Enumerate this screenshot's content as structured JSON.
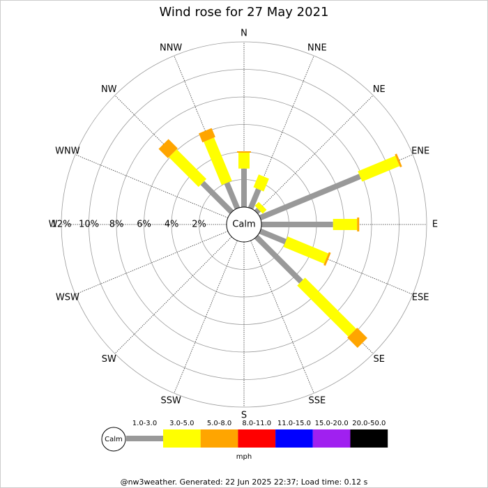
{
  "chart_data": {
    "type": "windrose",
    "title": "Wind rose for 27 May 2021",
    "categories": [
      "N",
      "NNE",
      "NE",
      "ENE",
      "E",
      "ESE",
      "SE",
      "SSE",
      "S",
      "SSW",
      "SW",
      "WSW",
      "W",
      "WNW",
      "NW",
      "NNW"
    ],
    "series": [
      {
        "name": "1.0-3.0",
        "color": "#999999",
        "values": [
          2.8,
          1.5,
          0.25,
          7.85,
          5.2,
          2.0,
          4.6,
          0,
          0,
          0,
          0,
          0,
          0,
          0,
          3.0,
          2.0
        ]
      },
      {
        "name": "3.0-5.0",
        "color": "#ffff00",
        "values": [
          1.15,
          1.0,
          0.4,
          2.95,
          1.75,
          3.2,
          5.25,
          0,
          0,
          0,
          0,
          0,
          0,
          0,
          3.05,
          3.4
        ]
      },
      {
        "name": "5.0-8.0",
        "color": "#ffa500",
        "values": [
          0.1,
          0,
          0,
          0.15,
          0.15,
          0.15,
          1.05,
          0,
          0,
          0,
          0,
          0,
          0,
          0,
          0.95,
          0.7
        ]
      },
      {
        "name": "8.0-11.0",
        "color": "#ff0000",
        "values": [
          0,
          0,
          0,
          0,
          0,
          0,
          0,
          0,
          0,
          0,
          0,
          0,
          0,
          0,
          0,
          0
        ]
      },
      {
        "name": "11.0-15.0",
        "color": "#0000ff",
        "values": [
          0,
          0,
          0,
          0,
          0,
          0,
          0,
          0,
          0,
          0,
          0,
          0,
          0,
          0,
          0,
          0
        ]
      },
      {
        "name": "15.0-20.0",
        "color": "#a020f0",
        "values": [
          0,
          0,
          0,
          0,
          0,
          0,
          0,
          0,
          0,
          0,
          0,
          0,
          0,
          0,
          0,
          0
        ]
      },
      {
        "name": "20.0-50.0",
        "color": "#000000",
        "values": [
          0,
          0,
          0,
          0,
          0,
          0,
          0,
          0,
          0,
          0,
          0,
          0,
          0,
          0,
          0,
          0
        ]
      }
    ],
    "rlim": [
      0,
      12
    ],
    "rticks": [
      {
        "value": 2,
        "label": "2%"
      },
      {
        "value": 4,
        "label": "4%"
      },
      {
        "value": 6,
        "label": "6%"
      },
      {
        "value": 8,
        "label": "8%"
      },
      {
        "value": 10,
        "label": "10%"
      },
      {
        "value": 12,
        "label": "12%"
      }
    ],
    "calm_label": "Calm",
    "units": "mph",
    "footer": "@nw3weather.  Generated: 22 Jun 2025 22:37; Load time: 0.12 s"
  }
}
